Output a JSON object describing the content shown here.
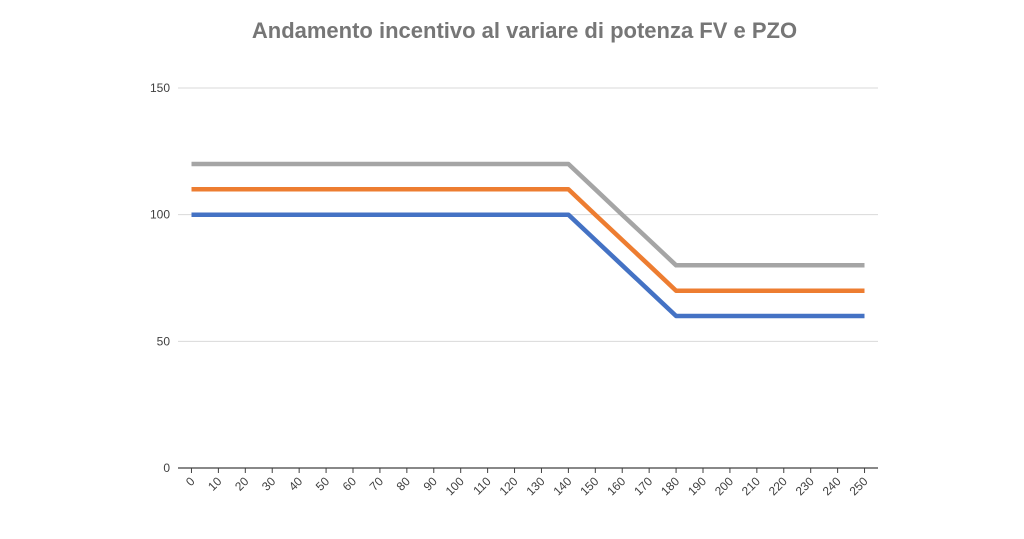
{
  "chart_data": {
    "type": "line",
    "title": "Andamento incentivo al variare di potenza FV e PZO",
    "xlabel": "",
    "ylabel": "",
    "x": [
      0,
      10,
      20,
      30,
      40,
      50,
      60,
      70,
      80,
      90,
      100,
      110,
      120,
      130,
      140,
      150,
      160,
      170,
      180,
      190,
      200,
      210,
      220,
      230,
      240,
      250
    ],
    "ylim": [
      0,
      150
    ],
    "yticks": [
      0,
      50,
      100,
      150
    ],
    "grid": true,
    "legend": "none",
    "series": [
      {
        "color": "#4472C4",
        "values": [
          100,
          100,
          100,
          100,
          100,
          100,
          100,
          100,
          100,
          100,
          100,
          100,
          100,
          100,
          100,
          90,
          80,
          70,
          60,
          60,
          60,
          60,
          60,
          60,
          60,
          60
        ]
      },
      {
        "color": "#ED7D31",
        "values": [
          110,
          110,
          110,
          110,
          110,
          110,
          110,
          110,
          110,
          110,
          110,
          110,
          110,
          110,
          110,
          100,
          90,
          80,
          70,
          70,
          70,
          70,
          70,
          70,
          70,
          70
        ]
      },
      {
        "color": "#A5A5A5",
        "values": [
          120,
          120,
          120,
          120,
          120,
          120,
          120,
          120,
          120,
          120,
          120,
          120,
          120,
          120,
          120,
          110,
          100,
          90,
          80,
          80,
          80,
          80,
          80,
          80,
          80,
          80
        ]
      }
    ]
  }
}
